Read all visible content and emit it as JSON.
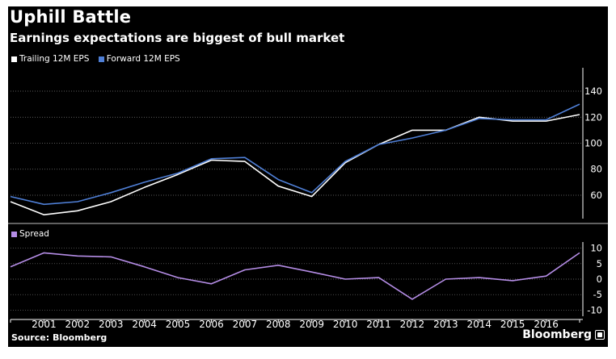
{
  "header": {
    "title": "Uphill Battle",
    "subtitle": "Earnings expectations are biggest of bull market"
  },
  "footer": {
    "source": "Source: Bloomberg",
    "brand": "Bloomberg"
  },
  "colors": {
    "background": "#000000",
    "trailing": "#ffffff",
    "forward": "#4f7fd6",
    "spread": "#b58de6",
    "grid": "#7a7a7a"
  },
  "chart_data": [
    {
      "type": "line",
      "x": [
        2000,
        2001,
        2002,
        2003,
        2004,
        2005,
        2006,
        2007,
        2008,
        2009,
        2010,
        2011,
        2012,
        2013,
        2014,
        2015,
        2016,
        2017
      ],
      "series": [
        {
          "name": "Trailing 12M EPS",
          "values": [
            55,
            45,
            48,
            55,
            66,
            76,
            87,
            86,
            67,
            59,
            85,
            99,
            110,
            110,
            120,
            117,
            117,
            122
          ]
        },
        {
          "name": "Forward 12M EPS",
          "values": [
            59,
            53,
            55,
            62,
            70,
            77,
            88,
            89,
            72,
            62,
            86,
            99,
            104,
            110,
            119,
            118,
            118,
            130
          ]
        }
      ],
      "yticks": [
        60,
        80,
        100,
        120,
        140
      ],
      "ylim": [
        42,
        158
      ],
      "grid": true,
      "legend": "top-left"
    },
    {
      "type": "line",
      "x": [
        2000,
        2001,
        2002,
        2003,
        2004,
        2005,
        2006,
        2007,
        2008,
        2009,
        2010,
        2011,
        2012,
        2013,
        2014,
        2015,
        2016,
        2017
      ],
      "series": [
        {
          "name": "Spread",
          "values": [
            4,
            8.5,
            7.5,
            7.2,
            4,
            0.5,
            -1.5,
            3,
            4.5,
            2.3,
            0,
            0.5,
            -6.5,
            0,
            0.5,
            -0.5,
            1,
            8.5
          ]
        }
      ],
      "xticks": [
        "2001",
        "2002",
        "2003",
        "2004",
        "2005",
        "2006",
        "2007",
        "2008",
        "2009",
        "2010",
        "2011",
        "2012",
        "2013",
        "2014",
        "2015",
        "2016"
      ],
      "yticks": [
        10,
        5,
        0,
        -5,
        -10
      ],
      "ylim": [
        -12,
        12
      ],
      "grid": true,
      "legend": "top-left"
    }
  ]
}
